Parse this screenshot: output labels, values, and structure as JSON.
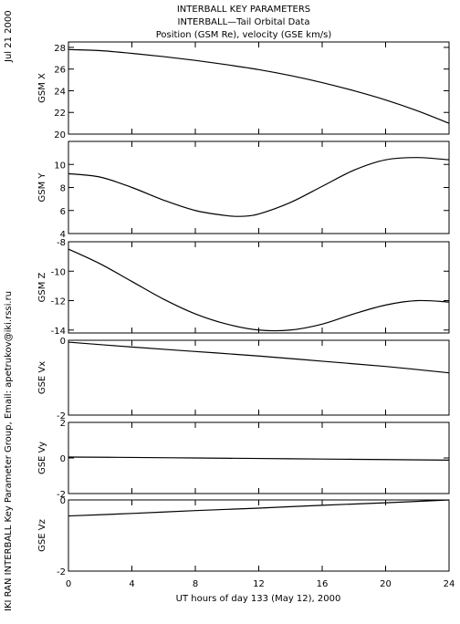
{
  "header": {
    "line1": "INTERBALL KEY PARAMETERS",
    "line2": "INTERBALL—Tail Orbital Data",
    "line3": "Position (GSM Re), velocity (GSE km/s)"
  },
  "side": {
    "date": "Jul 21 2000",
    "credit": "IKI RAN INTERBALL Key Parameter Group, Email: apetrukov@iki.rssi.ru"
  },
  "xaxis": {
    "label": "UT hours of day 133 (May 12), 2000",
    "ticks": [
      0,
      4,
      8,
      12,
      16,
      20,
      24
    ],
    "range": [
      0,
      24
    ]
  },
  "chart_data": [
    {
      "type": "line",
      "ylabel": "GSM X",
      "ylim": [
        20,
        28.5
      ],
      "yticks": [
        20,
        22,
        24,
        26,
        28
      ],
      "x": [
        0,
        2,
        4,
        6,
        8,
        10,
        12,
        14,
        16,
        18,
        20,
        22,
        24
      ],
      "values": [
        27.8,
        27.7,
        27.45,
        27.15,
        26.8,
        26.4,
        25.95,
        25.4,
        24.75,
        24.0,
        23.15,
        22.15,
        21.0
      ]
    },
    {
      "type": "line",
      "ylabel": "GSM Y",
      "ylim": [
        4,
        12
      ],
      "yticks": [
        4,
        6,
        8,
        10
      ],
      "x": [
        0,
        2,
        4,
        6,
        8,
        10,
        11,
        12,
        14,
        16,
        18,
        20,
        22,
        24
      ],
      "values": [
        9.2,
        8.9,
        8.0,
        6.9,
        6.0,
        5.55,
        5.5,
        5.7,
        6.7,
        8.1,
        9.5,
        10.4,
        10.6,
        10.4
      ]
    },
    {
      "type": "line",
      "ylabel": "GSM Z",
      "ylim": [
        -14.2,
        -8
      ],
      "yticks": [
        -14,
        -12,
        -10,
        -8
      ],
      "x": [
        0,
        2,
        4,
        6,
        8,
        10,
        12,
        14,
        16,
        18,
        20,
        22,
        24
      ],
      "values": [
        -8.5,
        -9.5,
        -10.7,
        -11.9,
        -12.9,
        -13.6,
        -14.0,
        -14.0,
        -13.6,
        -12.9,
        -12.3,
        -12.0,
        -12.1
      ]
    },
    {
      "type": "line",
      "ylabel": "GSE Vx",
      "ylim": [
        -2,
        0
      ],
      "yticks": [
        -2,
        0
      ],
      "x": [
        0,
        4,
        8,
        12,
        16,
        20,
        24
      ],
      "values": [
        -0.05,
        -0.18,
        -0.3,
        -0.42,
        -0.56,
        -0.7,
        -0.87
      ]
    },
    {
      "type": "line",
      "ylabel": "GSE Vy",
      "ylim": [
        -2,
        2
      ],
      "yticks": [
        -2,
        0,
        2
      ],
      "x": [
        0,
        4,
        8,
        12,
        16,
        20,
        24
      ],
      "values": [
        0.05,
        0.03,
        0.0,
        -0.03,
        -0.06,
        -0.09,
        -0.12
      ]
    },
    {
      "type": "line",
      "ylabel": "GSE Vz",
      "ylim": [
        -2,
        0
      ],
      "yticks": [
        -2,
        0
      ],
      "x": [
        0,
        4,
        8,
        12,
        16,
        20,
        24
      ],
      "values": [
        -0.45,
        -0.38,
        -0.3,
        -0.23,
        -0.15,
        -0.08,
        0.0
      ]
    }
  ]
}
